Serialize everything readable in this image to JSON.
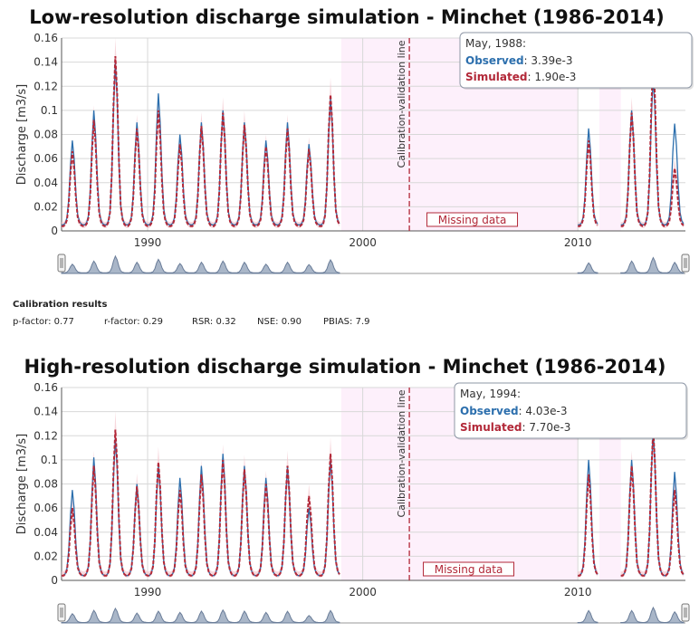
{
  "colors": {
    "observed": "#2c6fad",
    "simulated": "#b22838",
    "band": "#f3c7cf",
    "missing_shade": "#fdf0fb",
    "navigator_fill": "#a9b6c8",
    "grid": "#d8d8d8"
  },
  "chart_data": [
    {
      "type": "line",
      "title": "Low-resolution discharge simulation - Minchet (1986-2014)",
      "ylabel": "Discharge [m3/s]",
      "ylim": [
        0,
        0.16
      ],
      "yticks": [
        "0",
        "0.02",
        "0.04",
        "0.06",
        "0.08",
        "0.1",
        "0.12",
        "0.14",
        "0.16"
      ],
      "xlim": [
        "1986-01",
        "2014-12"
      ],
      "xticks": [
        "1990",
        "2000",
        "2010"
      ],
      "calibration_validation_date": "2002-03",
      "calibration_validation_label": "Calibration-validation line",
      "missing_data_period": [
        "1999-01",
        "2010-01"
      ],
      "missing_data_label": "Missing data",
      "missing_data_gaps": [
        [
          "1999-01",
          "2010-01"
        ],
        [
          "2011-01",
          "2012-01"
        ]
      ],
      "annual_peaks": {
        "years": [
          1986,
          1987,
          1988,
          1989,
          1990,
          1991,
          1992,
          1993,
          1994,
          1995,
          1996,
          1997,
          1998,
          2010,
          2012,
          2013,
          2014
        ],
        "observed": [
          0.075,
          0.1,
          0.14,
          0.09,
          0.114,
          0.08,
          0.09,
          0.1,
          0.09,
          0.075,
          0.09,
          0.072,
          0.11,
          0.085,
          0.1,
          0.128,
          0.089
        ],
        "simulated": [
          0.066,
          0.092,
          0.145,
          0.085,
          0.1,
          0.072,
          0.087,
          0.098,
          0.088,
          0.07,
          0.085,
          0.068,
          0.113,
          0.075,
          0.098,
          0.142,
          0.052
        ],
        "base_observed": 0.005,
        "base_simulated": 0.004
      },
      "series": [
        {
          "name": "Observed",
          "color": "#2c6fad",
          "style": "solid"
        },
        {
          "name": "Simulated",
          "color": "#b22838",
          "style": "dashed"
        }
      ],
      "tooltip": {
        "date": "May, 1988:",
        "observed_label": "Observed",
        "observed_value": ": 3.39e-3",
        "simulated_label": "Simulated",
        "simulated_value": ": 1.90e-3"
      }
    },
    {
      "type": "line",
      "title": "High-resolution discharge simulation - Minchet (1986-2014)",
      "ylabel": "Discharge [m3/s]",
      "ylim": [
        0,
        0.16
      ],
      "yticks": [
        "0",
        "0.02",
        "0.04",
        "0.06",
        "0.08",
        "0.1",
        "0.12",
        "0.14",
        "0.16"
      ],
      "xlim": [
        "1986-01",
        "2014-12"
      ],
      "xticks": [
        "1990",
        "2000",
        "2010"
      ],
      "calibration_validation_date": "2002-03",
      "calibration_validation_label": "Calibration-validation line",
      "missing_data_period": [
        "1999-01",
        "2010-01"
      ],
      "missing_data_label": "Missing data",
      "missing_data_gaps": [
        [
          "1999-01",
          "2010-01"
        ],
        [
          "2011-01",
          "2012-01"
        ]
      ],
      "annual_peaks": {
        "years": [
          1986,
          1987,
          1988,
          1989,
          1990,
          1991,
          1992,
          1993,
          1994,
          1995,
          1996,
          1997,
          1998,
          2010,
          2012,
          2013,
          2014
        ],
        "observed": [
          0.075,
          0.102,
          0.118,
          0.08,
          0.095,
          0.085,
          0.095,
          0.105,
          0.095,
          0.085,
          0.094,
          0.06,
          0.1,
          0.1,
          0.1,
          0.125,
          0.09
        ],
        "simulated": [
          0.06,
          0.095,
          0.125,
          0.078,
          0.098,
          0.075,
          0.088,
          0.1,
          0.092,
          0.08,
          0.095,
          0.07,
          0.105,
          0.088,
          0.095,
          0.125,
          0.075
        ],
        "base_observed": 0.004,
        "base_simulated": 0.004
      },
      "series": [
        {
          "name": "Observed",
          "color": "#2c6fad",
          "style": "solid"
        },
        {
          "name": "Simulated",
          "color": "#b22838",
          "style": "dashed"
        }
      ],
      "tooltip": {
        "date": "May, 1994:",
        "observed_label": "Observed",
        "observed_value": ": 4.03e-3",
        "simulated_label": "Simulated",
        "simulated_value": ": 7.70e-3"
      }
    }
  ],
  "calibration": {
    "title": "Calibration results",
    "pfactor": "p-factor: 0.77",
    "rfactor": "r-factor: 0.29",
    "rsr": "RSR: 0.32",
    "nse": "NSE: 0.90",
    "pbias": "PBIAS: 7.9"
  }
}
